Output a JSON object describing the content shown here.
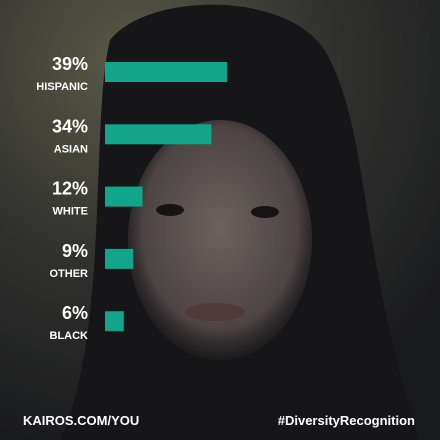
{
  "chart_data": {
    "type": "hbar",
    "categories": [
      "HISPANIC",
      "ASIAN",
      "WHITE",
      "OTHER",
      "BLACK"
    ],
    "values": [
      39,
      34,
      12,
      9,
      6
    ],
    "value_labels": [
      "39%",
      "34%",
      "12%",
      "9%",
      "6%"
    ],
    "color": "#12a58b",
    "annotations": [
      "KAIROS.COM/YOU",
      "#DiversityRecognition"
    ]
  }
}
